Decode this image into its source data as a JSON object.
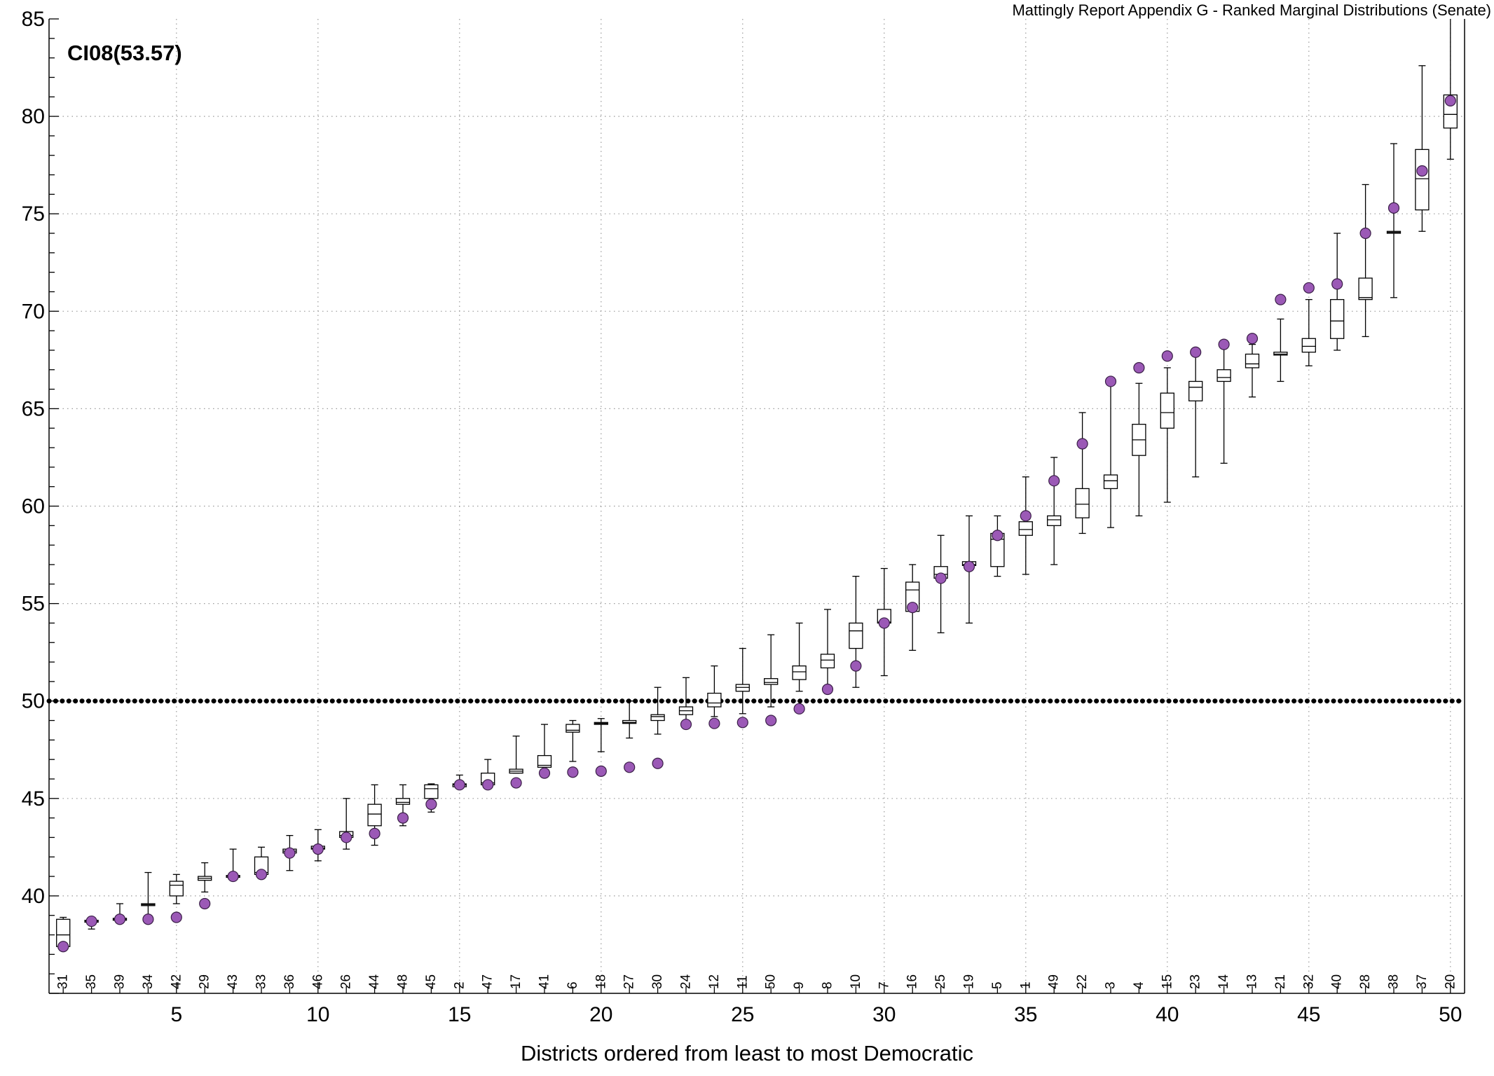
{
  "chart_data": {
    "type": "box",
    "title": "Mattingly Report Appendix G - Ranked Marginal Distributions (Senate)",
    "annotation": "CI08(53.57)",
    "xlabel": "Districts ordered from least to most Democratic",
    "ylabel": "",
    "xlim": [
      0.5,
      50.5
    ],
    "ylim": [
      35,
      85
    ],
    "x_ticks": [
      5,
      10,
      15,
      20,
      25,
      30,
      35,
      40,
      45,
      50
    ],
    "y_ticks": [
      40,
      45,
      50,
      55,
      60,
      65,
      70,
      75,
      80,
      85
    ],
    "reference_line": 50,
    "grid": true,
    "point_color": "#9b59b6",
    "x": [
      1,
      2,
      3,
      4,
      5,
      6,
      7,
      8,
      9,
      10,
      11,
      12,
      13,
      14,
      15,
      16,
      17,
      18,
      19,
      20,
      21,
      22,
      23,
      24,
      25,
      26,
      27,
      28,
      29,
      30,
      31,
      32,
      33,
      34,
      35,
      36,
      37,
      38,
      39,
      40,
      41,
      42,
      43,
      44,
      45,
      46,
      47,
      48,
      49,
      50
    ],
    "district_labels": [
      "31",
      "35",
      "39",
      "34",
      "42",
      "29",
      "43",
      "33",
      "36",
      "46",
      "26",
      "44",
      "48",
      "45",
      "2",
      "47",
      "17",
      "41",
      "6",
      "18",
      "27",
      "30",
      "24",
      "12",
      "11",
      "50",
      "9",
      "8",
      "10",
      "7",
      "16",
      "25",
      "19",
      "5",
      "1",
      "49",
      "22",
      "3",
      "4",
      "15",
      "23",
      "14",
      "13",
      "21",
      "32",
      "40",
      "28",
      "38",
      "37",
      "20"
    ],
    "enacted": [
      37.4,
      38.7,
      38.8,
      38.8,
      38.9,
      39.6,
      41.0,
      41.1,
      42.2,
      42.4,
      43.0,
      43.2,
      44.0,
      44.7,
      45.7,
      45.7,
      45.8,
      46.3,
      46.35,
      46.4,
      46.6,
      46.8,
      48.8,
      48.85,
      48.9,
      49.0,
      49.6,
      50.6,
      51.8,
      54.0,
      54.8,
      56.3,
      56.9,
      58.5,
      59.5,
      61.3,
      63.2,
      66.4,
      67.1,
      67.7,
      67.9,
      68.3,
      68.6,
      70.6,
      71.2,
      71.4,
      74.0,
      75.3,
      77.2,
      80.8
    ],
    "q1": [
      37.4,
      38.65,
      38.75,
      39.5,
      40.0,
      40.8,
      40.95,
      41.1,
      42.2,
      42.4,
      43.0,
      43.6,
      44.7,
      45.0,
      45.6,
      45.7,
      46.3,
      46.6,
      48.4,
      48.8,
      48.85,
      49.0,
      49.3,
      49.7,
      50.5,
      50.85,
      51.1,
      51.7,
      52.7,
      54.0,
      54.6,
      56.3,
      56.95,
      56.9,
      58.5,
      59.0,
      59.4,
      60.9,
      62.6,
      64.0,
      65.4,
      66.4,
      67.1,
      67.75,
      67.9,
      68.6,
      70.6,
      74.0,
      75.2,
      79.4
    ],
    "median": [
      38.0,
      38.7,
      38.8,
      39.55,
      40.55,
      40.9,
      41.0,
      41.2,
      42.3,
      42.45,
      43.1,
      44.2,
      44.8,
      45.5,
      45.7,
      45.8,
      46.4,
      46.7,
      48.5,
      48.85,
      48.9,
      49.2,
      49.5,
      49.9,
      50.7,
      50.95,
      51.5,
      52.1,
      53.6,
      54.05,
      55.7,
      56.5,
      57.0,
      58.3,
      58.8,
      59.3,
      60.1,
      61.3,
      63.4,
      64.8,
      66.1,
      66.6,
      67.3,
      67.8,
      68.2,
      69.5,
      70.7,
      74.05,
      76.8,
      80.1
    ],
    "q3": [
      38.8,
      38.75,
      38.85,
      39.6,
      40.75,
      41.0,
      41.05,
      42.0,
      42.4,
      42.55,
      43.3,
      44.7,
      45.0,
      45.7,
      45.75,
      46.3,
      46.5,
      47.2,
      48.8,
      48.9,
      49.0,
      49.3,
      49.7,
      50.4,
      50.85,
      51.15,
      51.8,
      52.4,
      54.0,
      54.7,
      56.1,
      56.9,
      57.15,
      58.6,
      59.2,
      59.5,
      60.9,
      61.6,
      64.2,
      65.8,
      66.4,
      67.0,
      67.8,
      67.9,
      68.6,
      70.6,
      71.7,
      74.1,
      78.3,
      81.1
    ],
    "whisker_low": [
      37.35,
      38.3,
      38.6,
      38.7,
      39.6,
      40.2,
      40.8,
      40.9,
      41.3,
      41.8,
      42.4,
      42.6,
      43.6,
      44.3,
      45.6,
      45.7,
      46.3,
      46.35,
      46.9,
      47.4,
      48.1,
      48.3,
      48.9,
      49.2,
      49.35,
      49.7,
      50.5,
      50.8,
      50.7,
      51.3,
      52.6,
      53.5,
      54.0,
      56.4,
      56.5,
      57.0,
      58.6,
      58.9,
      59.5,
      60.2,
      61.5,
      62.2,
      65.6,
      66.4,
      67.2,
      68.0,
      68.7,
      70.7,
      74.1,
      77.8
    ],
    "whisker_high": [
      38.9,
      38.85,
      39.6,
      41.2,
      41.1,
      41.7,
      42.4,
      42.5,
      43.1,
      43.4,
      45.0,
      45.7,
      45.7,
      45.75,
      46.2,
      47.0,
      48.2,
      48.8,
      49.0,
      49.1,
      50.0,
      50.7,
      51.2,
      51.8,
      52.7,
      53.4,
      54.0,
      54.7,
      56.4,
      56.8,
      57.0,
      58.5,
      59.5,
      59.5,
      61.5,
      62.5,
      64.8,
      66.5,
      66.3,
      67.1,
      67.8,
      68.2,
      68.3,
      69.6,
      70.6,
      74.0,
      76.5,
      78.6,
      82.6,
      85.2
    ]
  }
}
